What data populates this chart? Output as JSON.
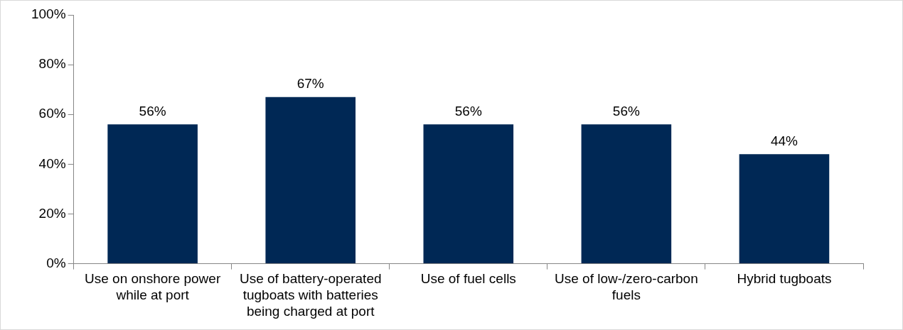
{
  "chart_data": {
    "type": "bar",
    "categories": [
      "Use on onshore power while at port",
      "Use of battery-operated tugboats with batteries being charged at port",
      "Use of fuel cells",
      "Use of low-/zero-carbon fuels",
      "Hybrid tugboats"
    ],
    "values": [
      56,
      67,
      56,
      56,
      44
    ],
    "value_labels": [
      "56%",
      "67%",
      "56%",
      "56%",
      "44%"
    ],
    "color": "#002855",
    "ylim": [
      0,
      100
    ],
    "yticks": [
      {
        "value": 0,
        "label": "0%"
      },
      {
        "value": 20,
        "label": "20%"
      },
      {
        "value": 40,
        "label": "40%"
      },
      {
        "value": 60,
        "label": "60%"
      },
      {
        "value": 80,
        "label": "80%"
      },
      {
        "value": 100,
        "label": "100%"
      }
    ],
    "grid": false,
    "legend": false
  }
}
